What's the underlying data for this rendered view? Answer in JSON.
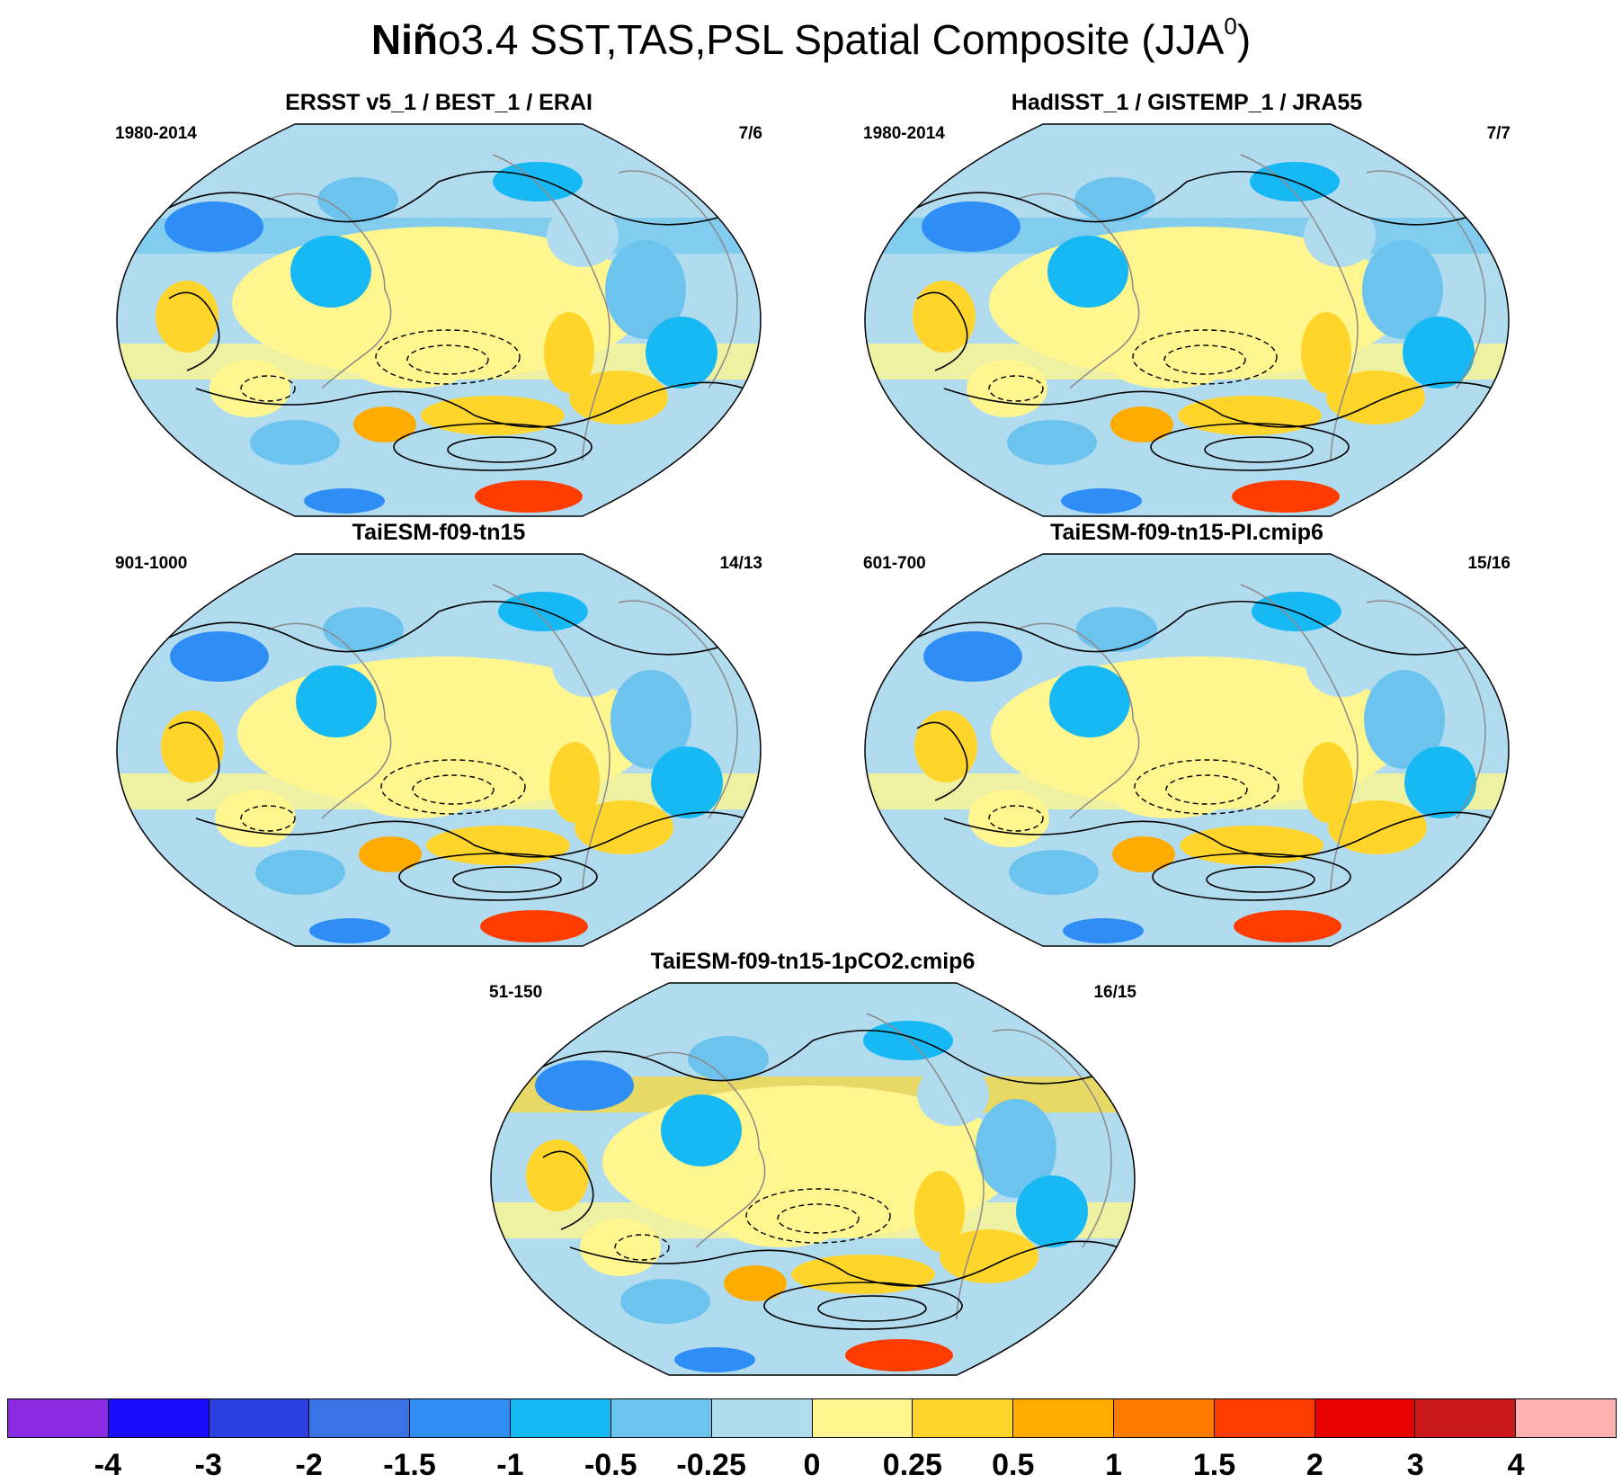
{
  "title": {
    "bold_part": "Niñ",
    "rest": "o3.4 SST,TAS,PSL Spatial Composite (JJA",
    "superscript": "0",
    "close": ")"
  },
  "panels": [
    {
      "title": "ERSST v5_1 / BEST_1 / ERAI",
      "period": "1980-2014",
      "count": "7/6"
    },
    {
      "title": "HadISST_1 / GISTEMP_1 / JRA55",
      "period": "1980-2014",
      "count": "7/7"
    },
    {
      "title": "TaiESM-f09-tn15",
      "period": "901-1000",
      "count": "14/13"
    },
    {
      "title": "TaiESM-f09-tn15-PI.cmip6",
      "period": "601-700",
      "count": "15/16"
    },
    {
      "title": "TaiESM-f09-tn15-1pCO2.cmip6",
      "period": "51-150",
      "count": "16/15"
    }
  ],
  "colorbar": {
    "colors": [
      "#8a2be2",
      "#1a0dff",
      "#2c3fe0",
      "#3a73e6",
      "#2e8ef5",
      "#17b9f5",
      "#6cc4ee",
      "#b1dcf0",
      "#fff68f",
      "#ffd52b",
      "#ffab00",
      "#ff7b00",
      "#ff3c00",
      "#e80000",
      "#c81818",
      "#ffb0b0"
    ],
    "labels": [
      "-4",
      "-3",
      "-2",
      "-1.5",
      "-1",
      "-0.5",
      "-0.25",
      "0",
      "0.25",
      "0.5",
      "1",
      "1.5",
      "2",
      "3",
      "4"
    ]
  },
  "colors": {
    "ocean_base": "#b1dcf0",
    "land_outline": "#8a8a8a",
    "contour": "#000000"
  }
}
